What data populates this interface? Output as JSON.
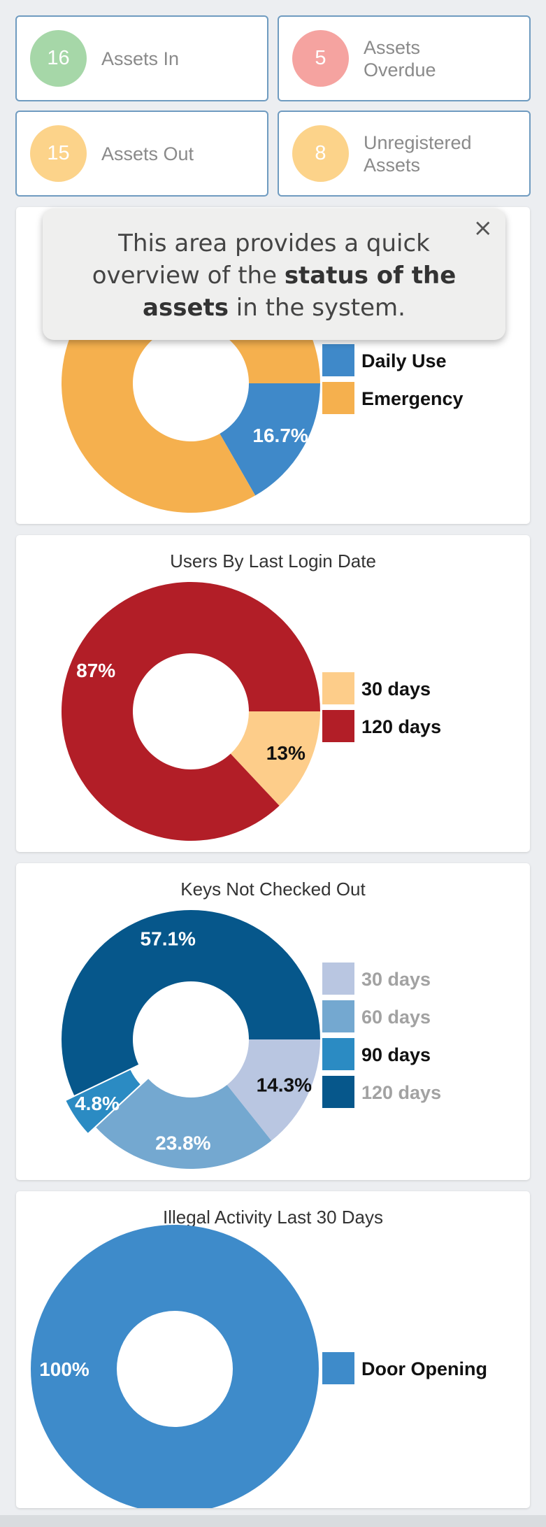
{
  "stats": [
    {
      "value": "16",
      "label": "Assets In",
      "color": "#a6d7a8"
    },
    {
      "value": "5",
      "label": "Assets Overdue",
      "color": "#f5a3a0"
    },
    {
      "value": "15",
      "label": "Assets Out",
      "color": "#fcd38a"
    },
    {
      "value": "8",
      "label": "Unregistered Assets",
      "color": "#fcd38a"
    }
  ],
  "tooltip": {
    "text_before": "This area provides a quick overview of the ",
    "text_bold": "status of the assets",
    "text_after": " in the system.",
    "close": "×"
  },
  "chart_data": [
    {
      "type": "pie",
      "title": "",
      "donut": true,
      "slices": [
        {
          "name": "Daily Use",
          "value": 16.7,
          "label": "16.7%",
          "color": "#3f89c9",
          "legend_bold": true,
          "label_color": "#ffffff"
        },
        {
          "name": "Emergency",
          "value": 83.3,
          "label": "83.3%",
          "color": "#f5b04e",
          "legend_bold": true,
          "label_color": "#ffffff"
        }
      ]
    },
    {
      "type": "pie",
      "title": "Users By Last Login Date",
      "donut": true,
      "slices": [
        {
          "name": "30 days",
          "value": 13,
          "label": "13%",
          "color": "#fdcd8a",
          "legend_bold": true,
          "label_color": "#111111"
        },
        {
          "name": "120 days",
          "value": 87,
          "label": "87%",
          "color": "#b21e27",
          "legend_bold": true,
          "label_color": "#ffffff"
        }
      ]
    },
    {
      "type": "pie",
      "title": "Keys Not Checked Out",
      "donut": true,
      "slices": [
        {
          "name": "30 days",
          "value": 14.3,
          "label": "14.3%",
          "color": "#b9c6e1",
          "legend_bold": false,
          "label_color": "#111111"
        },
        {
          "name": "60 days",
          "value": 23.8,
          "label": "23.8%",
          "color": "#74a8d0",
          "legend_bold": false,
          "label_color": "#ffffff"
        },
        {
          "name": "90 days",
          "value": 4.8,
          "label": "4.8%",
          "color": "#2b8bc3",
          "legend_bold": true,
          "label_color": "#ffffff",
          "exploded": true
        },
        {
          "name": "120 days",
          "value": 57.1,
          "label": "57.1%",
          "color": "#06578b",
          "legend_bold": false,
          "label_color": "#ffffff"
        }
      ]
    },
    {
      "type": "pie",
      "title": "Illegal Activity Last 30 Days",
      "donut": true,
      "slices": [
        {
          "name": "Door Opening",
          "value": 100,
          "label": "100%",
          "color": "#3e8bca",
          "legend_bold": true,
          "label_color": "#ffffff"
        }
      ]
    }
  ]
}
